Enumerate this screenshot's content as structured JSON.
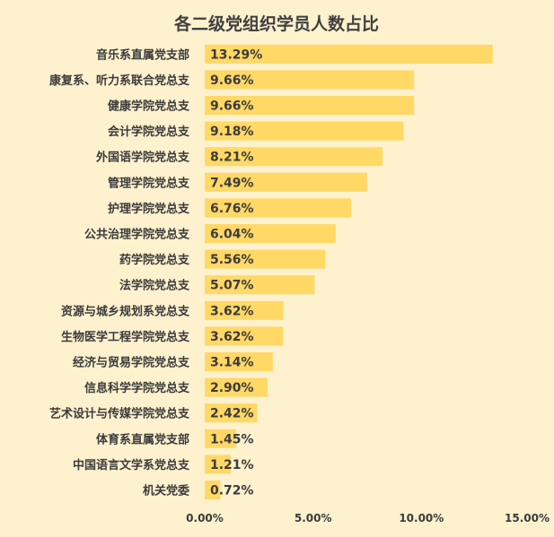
{
  "chart_data": {
    "type": "bar",
    "orientation": "horizontal",
    "title": "各二级党组织学员人数占比",
    "categories": [
      "音乐系直属党支部",
      "康复系、听力系联合党总支",
      "健康学院党总支",
      "会计学院党总支",
      "外国语学院党总支",
      "管理学院党总支",
      "护理学院党总支",
      "公共治理学院党总支",
      "药学院党总支",
      "法学院党总支",
      "资源与城乡规划系党总支",
      "生物医学工程学院党总支",
      "经济与贸易学院党总支",
      "信息科学学院党总支",
      "艺术设计与传媒学院党总支",
      "体育系直属党支部",
      "中国语言文学系党总支",
      "机关党委"
    ],
    "values": [
      13.29,
      9.66,
      9.66,
      9.18,
      8.21,
      7.49,
      6.76,
      6.04,
      5.56,
      5.07,
      3.62,
      3.62,
      3.14,
      2.9,
      2.42,
      1.45,
      1.21,
      0.72
    ],
    "value_labels": [
      "13.29%",
      "9.66%",
      "9.66%",
      "9.18%",
      "8.21%",
      "7.49%",
      "6.76%",
      "6.04%",
      "5.56%",
      "5.07%",
      "3.62%",
      "3.62%",
      "3.14%",
      "2.90%",
      "2.42%",
      "1.45%",
      "1.21%",
      "0.72%"
    ],
    "xlim": [
      0,
      15
    ],
    "xticks": [
      0,
      5,
      10,
      15
    ],
    "xtick_labels": [
      "0.00%",
      "5.00%",
      "10.00%",
      "15.00%"
    ],
    "xlabel": "",
    "ylabel": "",
    "grid": false,
    "legend": "none",
    "bar_color": "#ffd866",
    "background_color": "#fdf1ce"
  }
}
